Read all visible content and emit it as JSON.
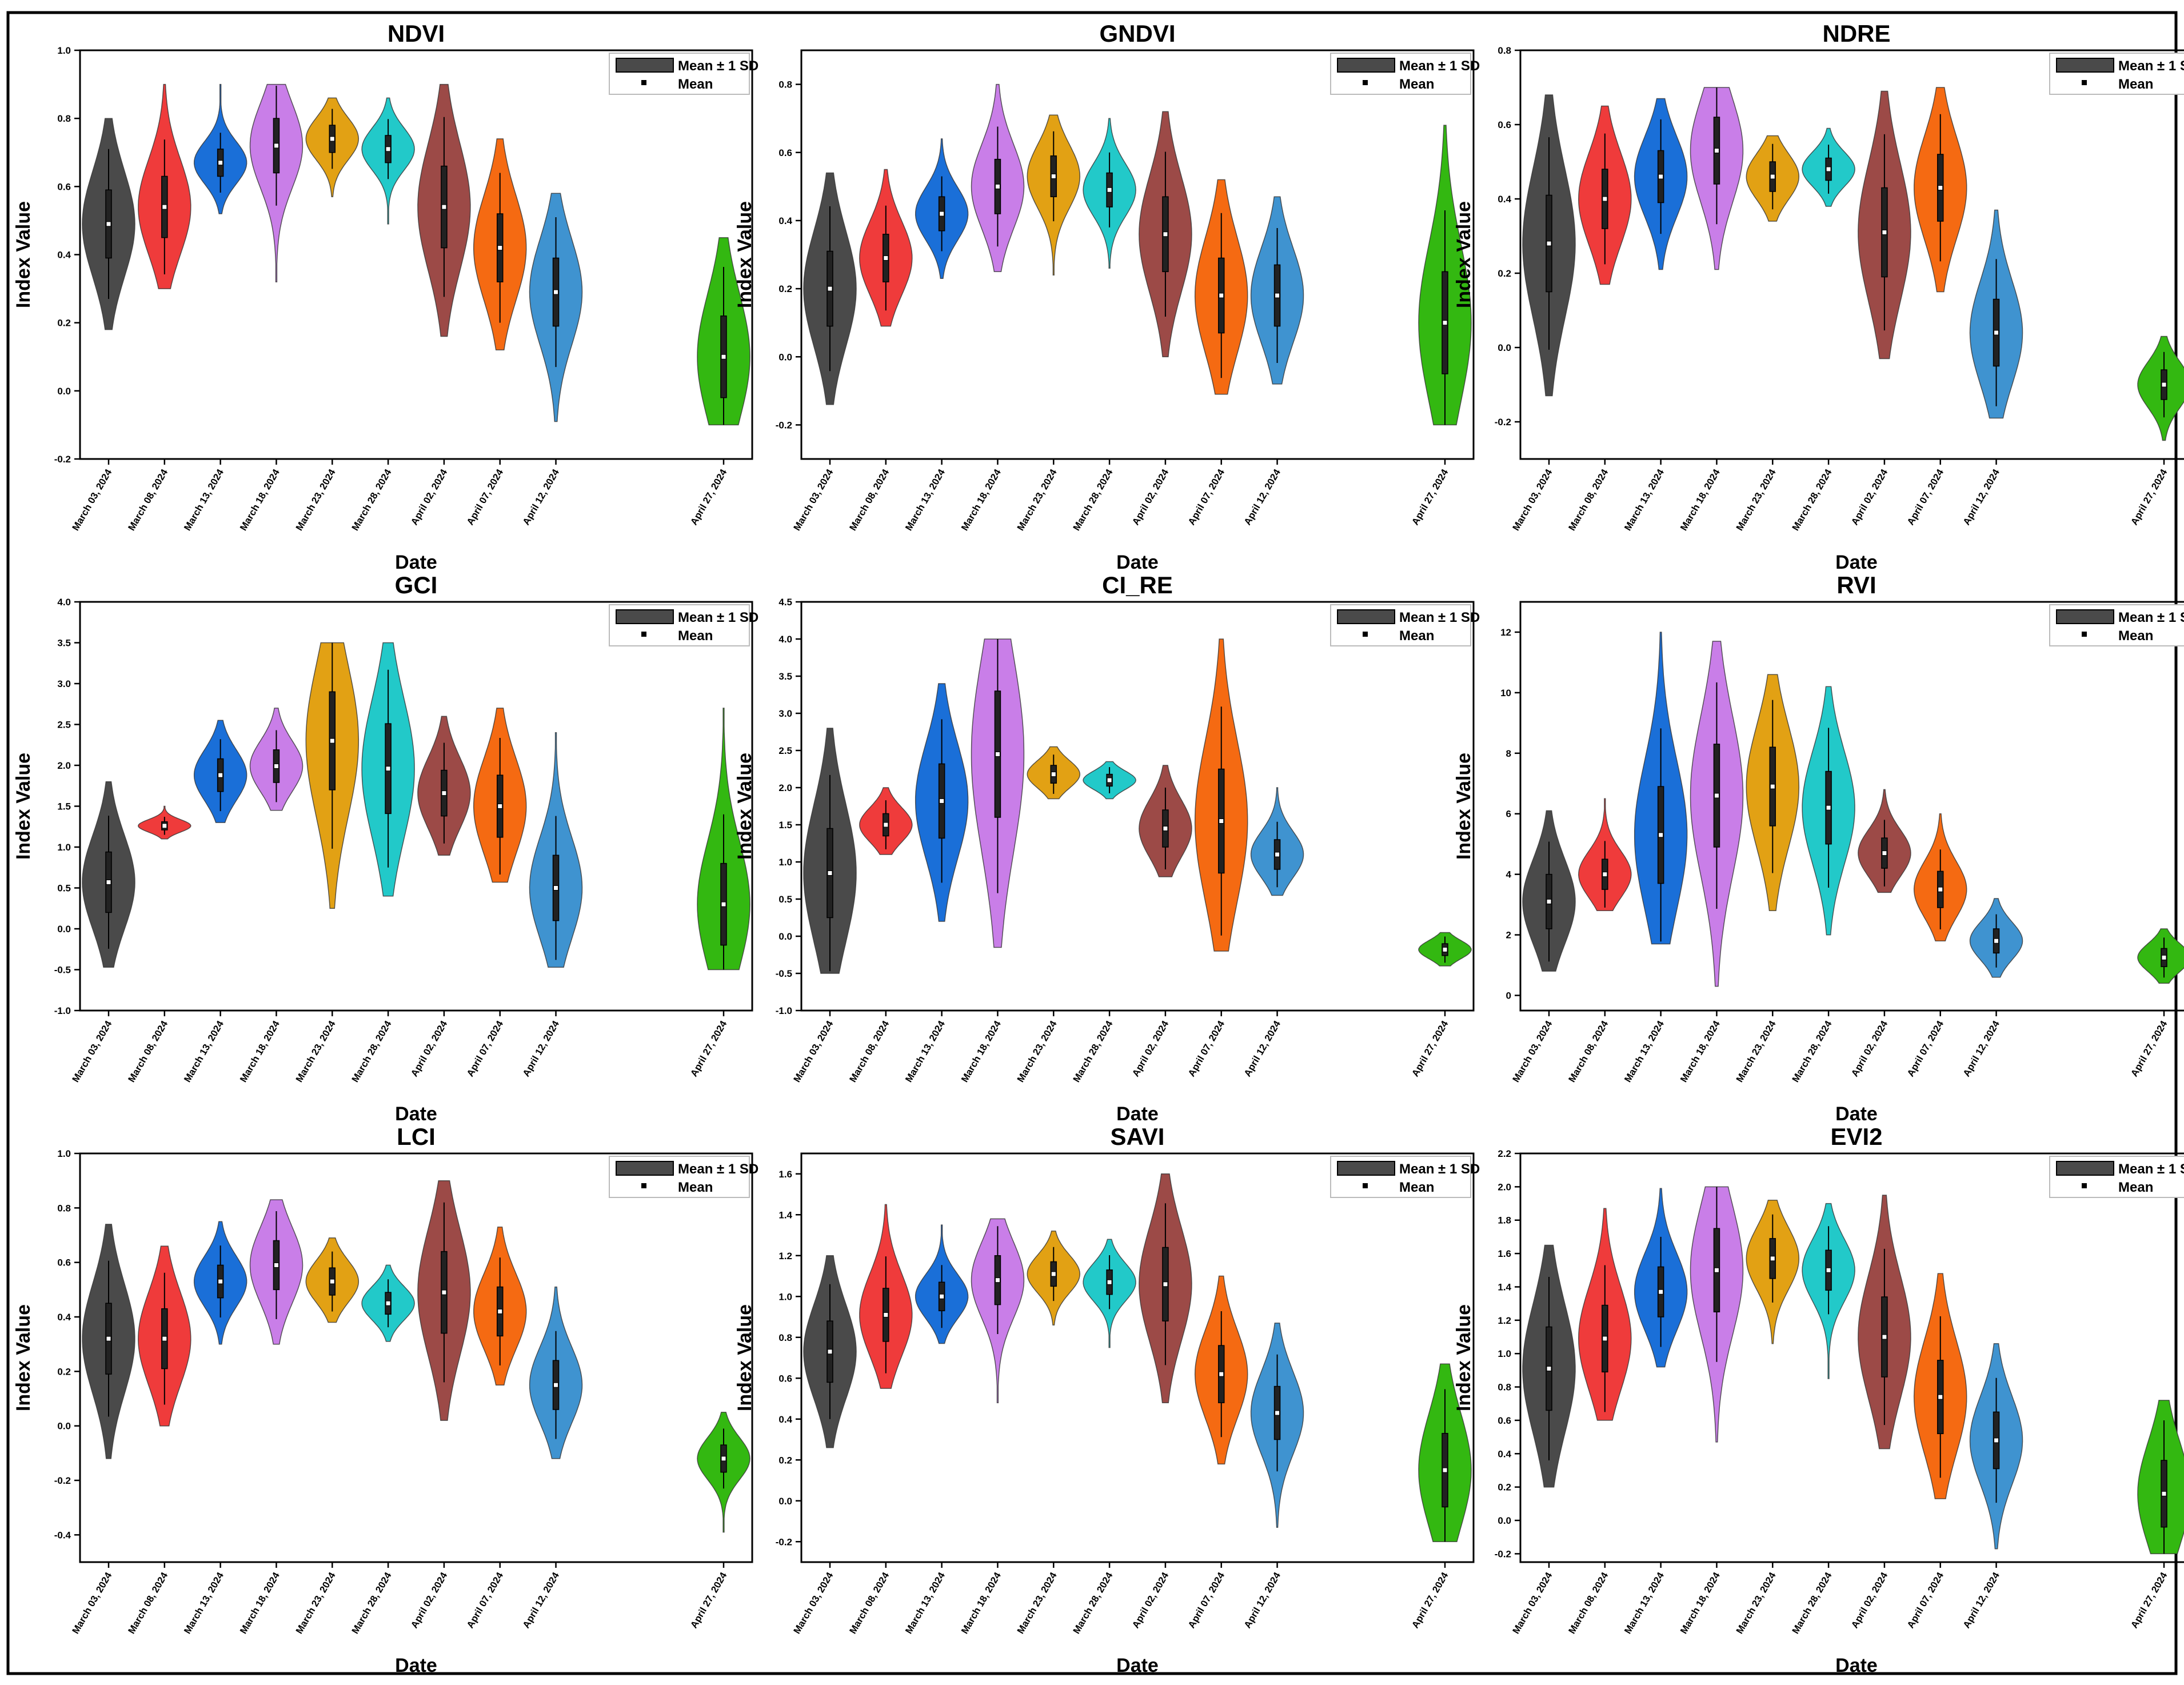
{
  "layout": {
    "columns": 3,
    "rows": 3
  },
  "legend": {
    "box_label": "Mean ± 1 SD",
    "mean_label": "Mean",
    "placement": "top-right"
  },
  "common": {
    "xlabel": "Date",
    "ylabel": "Index Value",
    "dates": [
      "March 03, 2024",
      "March 08, 2024",
      "March 13, 2024",
      "March 18, 2024",
      "March 23, 2024",
      "March 28, 2024",
      "April 02, 2024",
      "April 07, 2024",
      "April 12, 2024",
      "April 27, 2024"
    ],
    "date_day_offsets": [
      0,
      5,
      10,
      15,
      20,
      25,
      30,
      35,
      40,
      55
    ],
    "colors": [
      "#4a4a4a",
      "#ef3b3b",
      "#1a6fd8",
      "#c97ee8",
      "#e2a114",
      "#22c9c9",
      "#9c4a47",
      "#f56a12",
      "#3f93d0",
      "#33b811"
    ]
  },
  "chart_data": [
    {
      "type": "violin",
      "title": "NDVI",
      "ylim": [
        -0.2,
        1.0
      ],
      "yticks": [
        "-0.2",
        "0.0",
        "0.2",
        "0.4",
        "0.6",
        "0.8",
        "1.0"
      ],
      "series": [
        {
          "date": "March 03, 2024",
          "min": 0.18,
          "max": 0.8,
          "mean": 0.49,
          "sd": 0.1
        },
        {
          "date": "March 08, 2024",
          "min": 0.3,
          "max": 0.9,
          "mean": 0.54,
          "sd": 0.09
        },
        {
          "date": "March 13, 2024",
          "min": 0.52,
          "max": 0.9,
          "mean": 0.67,
          "sd": 0.04
        },
        {
          "date": "March 18, 2024",
          "min": 0.32,
          "max": 0.9,
          "mean": 0.72,
          "sd": 0.08
        },
        {
          "date": "March 23, 2024",
          "min": 0.57,
          "max": 0.86,
          "mean": 0.74,
          "sd": 0.04
        },
        {
          "date": "March 28, 2024",
          "min": 0.49,
          "max": 0.86,
          "mean": 0.71,
          "sd": 0.04
        },
        {
          "date": "April 02, 2024",
          "min": 0.16,
          "max": 0.9,
          "mean": 0.54,
          "sd": 0.12
        },
        {
          "date": "April 07, 2024",
          "min": 0.12,
          "max": 0.74,
          "mean": 0.42,
          "sd": 0.1
        },
        {
          "date": "April 12, 2024",
          "min": -0.09,
          "max": 0.58,
          "mean": 0.29,
          "sd": 0.1
        },
        {
          "date": "April 27, 2024",
          "min": -0.1,
          "max": 0.45,
          "mean": 0.1,
          "sd": 0.12
        }
      ]
    },
    {
      "type": "violin",
      "title": "GNDVI",
      "ylim": [
        -0.3,
        0.9
      ],
      "yticks": [
        "-0.2",
        "0.0",
        "0.2",
        "0.4",
        "0.6",
        "0.8"
      ],
      "series": [
        {
          "date": "March 03, 2024",
          "min": -0.14,
          "max": 0.54,
          "mean": 0.2,
          "sd": 0.11
        },
        {
          "date": "March 08, 2024",
          "min": 0.09,
          "max": 0.55,
          "mean": 0.29,
          "sd": 0.07
        },
        {
          "date": "March 13, 2024",
          "min": 0.23,
          "max": 0.64,
          "mean": 0.42,
          "sd": 0.05
        },
        {
          "date": "March 18, 2024",
          "min": 0.25,
          "max": 0.8,
          "mean": 0.5,
          "sd": 0.08
        },
        {
          "date": "March 23, 2024",
          "min": 0.24,
          "max": 0.71,
          "mean": 0.53,
          "sd": 0.06
        },
        {
          "date": "March 28, 2024",
          "min": 0.26,
          "max": 0.7,
          "mean": 0.49,
          "sd": 0.05
        },
        {
          "date": "April 02, 2024",
          "min": 0.0,
          "max": 0.72,
          "mean": 0.36,
          "sd": 0.11
        },
        {
          "date": "April 07, 2024",
          "min": -0.11,
          "max": 0.52,
          "mean": 0.18,
          "sd": 0.11
        },
        {
          "date": "April 12, 2024",
          "min": -0.08,
          "max": 0.47,
          "mean": 0.18,
          "sd": 0.09
        },
        {
          "date": "April 27, 2024",
          "min": -0.2,
          "max": 0.68,
          "mean": 0.1,
          "sd": 0.15
        }
      ]
    },
    {
      "type": "violin",
      "title": "NDRE",
      "ylim": [
        -0.3,
        0.8
      ],
      "yticks": [
        "-0.2",
        "0.0",
        "0.2",
        "0.4",
        "0.6",
        "0.8"
      ],
      "series": [
        {
          "date": "March 03, 2024",
          "min": -0.13,
          "max": 0.68,
          "mean": 0.28,
          "sd": 0.13
        },
        {
          "date": "March 08, 2024",
          "min": 0.17,
          "max": 0.65,
          "mean": 0.4,
          "sd": 0.08
        },
        {
          "date": "March 13, 2024",
          "min": 0.21,
          "max": 0.67,
          "mean": 0.46,
          "sd": 0.07
        },
        {
          "date": "March 18, 2024",
          "min": 0.21,
          "max": 0.7,
          "mean": 0.53,
          "sd": 0.09
        },
        {
          "date": "March 23, 2024",
          "min": 0.34,
          "max": 0.57,
          "mean": 0.46,
          "sd": 0.04
        },
        {
          "date": "March 28, 2024",
          "min": 0.38,
          "max": 0.59,
          "mean": 0.48,
          "sd": 0.03
        },
        {
          "date": "April 02, 2024",
          "min": -0.03,
          "max": 0.69,
          "mean": 0.31,
          "sd": 0.12
        },
        {
          "date": "April 07, 2024",
          "min": 0.15,
          "max": 0.7,
          "mean": 0.43,
          "sd": 0.09
        },
        {
          "date": "April 12, 2024",
          "min": -0.19,
          "max": 0.37,
          "mean": 0.04,
          "sd": 0.09
        },
        {
          "date": "April 27, 2024",
          "min": -0.25,
          "max": 0.03,
          "mean": -0.1,
          "sd": 0.04
        }
      ]
    },
    {
      "type": "violin",
      "title": "GCI",
      "ylim": [
        -1.0,
        4.0
      ],
      "yticks": [
        "-1.0",
        "-0.5",
        "0.0",
        "0.5",
        "1.0",
        "1.5",
        "2.0",
        "2.5",
        "3.0",
        "3.5",
        "4.0"
      ],
      "series": [
        {
          "date": "March 03, 2024",
          "min": -0.47,
          "max": 1.8,
          "mean": 0.57,
          "sd": 0.37
        },
        {
          "date": "March 08, 2024",
          "min": 1.1,
          "max": 1.5,
          "mean": 1.26,
          "sd": 0.05
        },
        {
          "date": "March 13, 2024",
          "min": 1.3,
          "max": 2.55,
          "mean": 1.88,
          "sd": 0.2
        },
        {
          "date": "March 18, 2024",
          "min": 1.45,
          "max": 2.7,
          "mean": 1.99,
          "sd": 0.2
        },
        {
          "date": "March 23, 2024",
          "min": 0.25,
          "max": 3.5,
          "mean": 2.3,
          "sd": 0.6
        },
        {
          "date": "March 28, 2024",
          "min": 0.4,
          "max": 3.5,
          "mean": 1.96,
          "sd": 0.55
        },
        {
          "date": "April 02, 2024",
          "min": 0.9,
          "max": 2.6,
          "mean": 1.66,
          "sd": 0.28
        },
        {
          "date": "April 07, 2024",
          "min": 0.57,
          "max": 2.7,
          "mean": 1.5,
          "sd": 0.38
        },
        {
          "date": "April 12, 2024",
          "min": -0.47,
          "max": 2.4,
          "mean": 0.5,
          "sd": 0.4
        },
        {
          "date": "April 27, 2024",
          "min": -0.5,
          "max": 2.7,
          "mean": 0.3,
          "sd": 0.5
        }
      ]
    },
    {
      "type": "violin",
      "title": "CI_RE",
      "ylim": [
        -1.0,
        4.5
      ],
      "yticks": [
        "-1.0",
        "-0.5",
        "0.0",
        "0.5",
        "1.0",
        "1.5",
        "2.0",
        "2.5",
        "3.0",
        "3.5",
        "4.0",
        "4.5"
      ],
      "series": [
        {
          "date": "March 03, 2024",
          "min": -0.5,
          "max": 2.8,
          "mean": 0.85,
          "sd": 0.6
        },
        {
          "date": "March 08, 2024",
          "min": 1.1,
          "max": 2.0,
          "mean": 1.5,
          "sd": 0.15
        },
        {
          "date": "March 13, 2024",
          "min": 0.2,
          "max": 3.4,
          "mean": 1.82,
          "sd": 0.5
        },
        {
          "date": "March 18, 2024",
          "min": -0.15,
          "max": 4.0,
          "mean": 2.45,
          "sd": 0.85
        },
        {
          "date": "March 23, 2024",
          "min": 1.85,
          "max": 2.55,
          "mean": 2.18,
          "sd": 0.12
        },
        {
          "date": "March 28, 2024",
          "min": 1.85,
          "max": 2.35,
          "mean": 2.1,
          "sd": 0.08
        },
        {
          "date": "April 02, 2024",
          "min": 0.8,
          "max": 2.3,
          "mean": 1.45,
          "sd": 0.25
        },
        {
          "date": "April 07, 2024",
          "min": -0.2,
          "max": 4.0,
          "mean": 1.55,
          "sd": 0.7
        },
        {
          "date": "April 12, 2024",
          "min": 0.55,
          "max": 2.0,
          "mean": 1.1,
          "sd": 0.2
        },
        {
          "date": "April 27, 2024",
          "min": -0.4,
          "max": 0.05,
          "mean": -0.18,
          "sd": 0.08
        }
      ]
    },
    {
      "type": "violin",
      "title": "RVI",
      "ylim": [
        -0.5,
        13.0
      ],
      "yticks": [
        "0",
        "2",
        "4",
        "6",
        "8",
        "10",
        "12"
      ],
      "series": [
        {
          "date": "March 03, 2024",
          "min": 0.8,
          "max": 6.1,
          "mean": 3.1,
          "sd": 0.9
        },
        {
          "date": "March 08, 2024",
          "min": 2.8,
          "max": 6.5,
          "mean": 4.0,
          "sd": 0.5
        },
        {
          "date": "March 13, 2024",
          "min": 1.7,
          "max": 12.0,
          "mean": 5.3,
          "sd": 1.6
        },
        {
          "date": "March 18, 2024",
          "min": 0.3,
          "max": 11.7,
          "mean": 6.6,
          "sd": 1.7
        },
        {
          "date": "March 23, 2024",
          "min": 2.8,
          "max": 10.6,
          "mean": 6.9,
          "sd": 1.3
        },
        {
          "date": "March 28, 2024",
          "min": 2.0,
          "max": 10.2,
          "mean": 6.2,
          "sd": 1.2
        },
        {
          "date": "April 02, 2024",
          "min": 3.4,
          "max": 6.8,
          "mean": 4.7,
          "sd": 0.5
        },
        {
          "date": "April 07, 2024",
          "min": 1.8,
          "max": 6.0,
          "mean": 3.5,
          "sd": 0.6
        },
        {
          "date": "April 12, 2024",
          "min": 0.6,
          "max": 3.2,
          "mean": 1.8,
          "sd": 0.4
        },
        {
          "date": "April 27, 2024",
          "min": 0.4,
          "max": 2.2,
          "mean": 1.25,
          "sd": 0.3
        }
      ]
    },
    {
      "type": "violin",
      "title": "LCI",
      "ylim": [
        -0.5,
        1.0
      ],
      "yticks": [
        "-0.4",
        "-0.2",
        "0.0",
        "0.2",
        "0.4",
        "0.6",
        "0.8",
        "1.0"
      ],
      "series": [
        {
          "date": "March 03, 2024",
          "min": -0.12,
          "max": 0.74,
          "mean": 0.32,
          "sd": 0.13
        },
        {
          "date": "March 08, 2024",
          "min": 0.0,
          "max": 0.66,
          "mean": 0.32,
          "sd": 0.11
        },
        {
          "date": "March 13, 2024",
          "min": 0.3,
          "max": 0.75,
          "mean": 0.53,
          "sd": 0.06
        },
        {
          "date": "March 18, 2024",
          "min": 0.3,
          "max": 0.83,
          "mean": 0.59,
          "sd": 0.09
        },
        {
          "date": "March 23, 2024",
          "min": 0.38,
          "max": 0.69,
          "mean": 0.53,
          "sd": 0.05
        },
        {
          "date": "March 28, 2024",
          "min": 0.31,
          "max": 0.59,
          "mean": 0.45,
          "sd": 0.04
        },
        {
          "date": "April 02, 2024",
          "min": 0.02,
          "max": 0.9,
          "mean": 0.49,
          "sd": 0.15
        },
        {
          "date": "April 07, 2024",
          "min": 0.15,
          "max": 0.73,
          "mean": 0.42,
          "sd": 0.09
        },
        {
          "date": "April 12, 2024",
          "min": -0.12,
          "max": 0.51,
          "mean": 0.15,
          "sd": 0.09
        },
        {
          "date": "April 27, 2024",
          "min": -0.39,
          "max": 0.05,
          "mean": -0.12,
          "sd": 0.05
        }
      ]
    },
    {
      "type": "violin",
      "title": "SAVI",
      "ylim": [
        -0.3,
        1.7
      ],
      "yticks": [
        "-0.2",
        "0.0",
        "0.2",
        "0.4",
        "0.6",
        "0.8",
        "1.0",
        "1.2",
        "1.4",
        "1.6"
      ],
      "series": [
        {
          "date": "March 03, 2024",
          "min": 0.26,
          "max": 1.2,
          "mean": 0.73,
          "sd": 0.15
        },
        {
          "date": "March 08, 2024",
          "min": 0.55,
          "max": 1.45,
          "mean": 0.91,
          "sd": 0.13
        },
        {
          "date": "March 13, 2024",
          "min": 0.77,
          "max": 1.35,
          "mean": 1.0,
          "sd": 0.07
        },
        {
          "date": "March 18, 2024",
          "min": 0.48,
          "max": 1.38,
          "mean": 1.08,
          "sd": 0.12
        },
        {
          "date": "March 23, 2024",
          "min": 0.86,
          "max": 1.32,
          "mean": 1.11,
          "sd": 0.06
        },
        {
          "date": "March 28, 2024",
          "min": 0.75,
          "max": 1.28,
          "mean": 1.07,
          "sd": 0.06
        },
        {
          "date": "April 02, 2024",
          "min": 0.48,
          "max": 1.6,
          "mean": 1.06,
          "sd": 0.18
        },
        {
          "date": "April 07, 2024",
          "min": 0.18,
          "max": 1.1,
          "mean": 0.62,
          "sd": 0.14
        },
        {
          "date": "April 12, 2024",
          "min": -0.13,
          "max": 0.87,
          "mean": 0.43,
          "sd": 0.13
        },
        {
          "date": "April 27, 2024",
          "min": -0.2,
          "max": 0.67,
          "mean": 0.15,
          "sd": 0.18
        }
      ]
    },
    {
      "type": "violin",
      "title": "EVI2",
      "ylim": [
        -0.25,
        2.2
      ],
      "yticks": [
        "-0.2",
        "0.0",
        "0.2",
        "0.4",
        "0.6",
        "0.8",
        "1.0",
        "1.2",
        "1.4",
        "1.6",
        "1.8",
        "2.0",
        "2.2"
      ],
      "series": [
        {
          "date": "March 03, 2024",
          "min": 0.2,
          "max": 1.65,
          "mean": 0.91,
          "sd": 0.25
        },
        {
          "date": "March 08, 2024",
          "min": 0.6,
          "max": 1.87,
          "mean": 1.09,
          "sd": 0.2
        },
        {
          "date": "March 13, 2024",
          "min": 0.92,
          "max": 1.99,
          "mean": 1.37,
          "sd": 0.15
        },
        {
          "date": "March 18, 2024",
          "min": 0.47,
          "max": 2.0,
          "mean": 1.5,
          "sd": 0.25
        },
        {
          "date": "March 23, 2024",
          "min": 1.06,
          "max": 1.92,
          "mean": 1.57,
          "sd": 0.12
        },
        {
          "date": "March 28, 2024",
          "min": 0.85,
          "max": 1.9,
          "mean": 1.5,
          "sd": 0.12
        },
        {
          "date": "April 02, 2024",
          "min": 0.43,
          "max": 1.95,
          "mean": 1.1,
          "sd": 0.24
        },
        {
          "date": "April 07, 2024",
          "min": 0.13,
          "max": 1.48,
          "mean": 0.74,
          "sd": 0.22
        },
        {
          "date": "April 12, 2024",
          "min": -0.17,
          "max": 1.06,
          "mean": 0.48,
          "sd": 0.17
        },
        {
          "date": "April 27, 2024",
          "min": -0.2,
          "max": 0.72,
          "mean": 0.16,
          "sd": 0.2
        }
      ]
    }
  ]
}
